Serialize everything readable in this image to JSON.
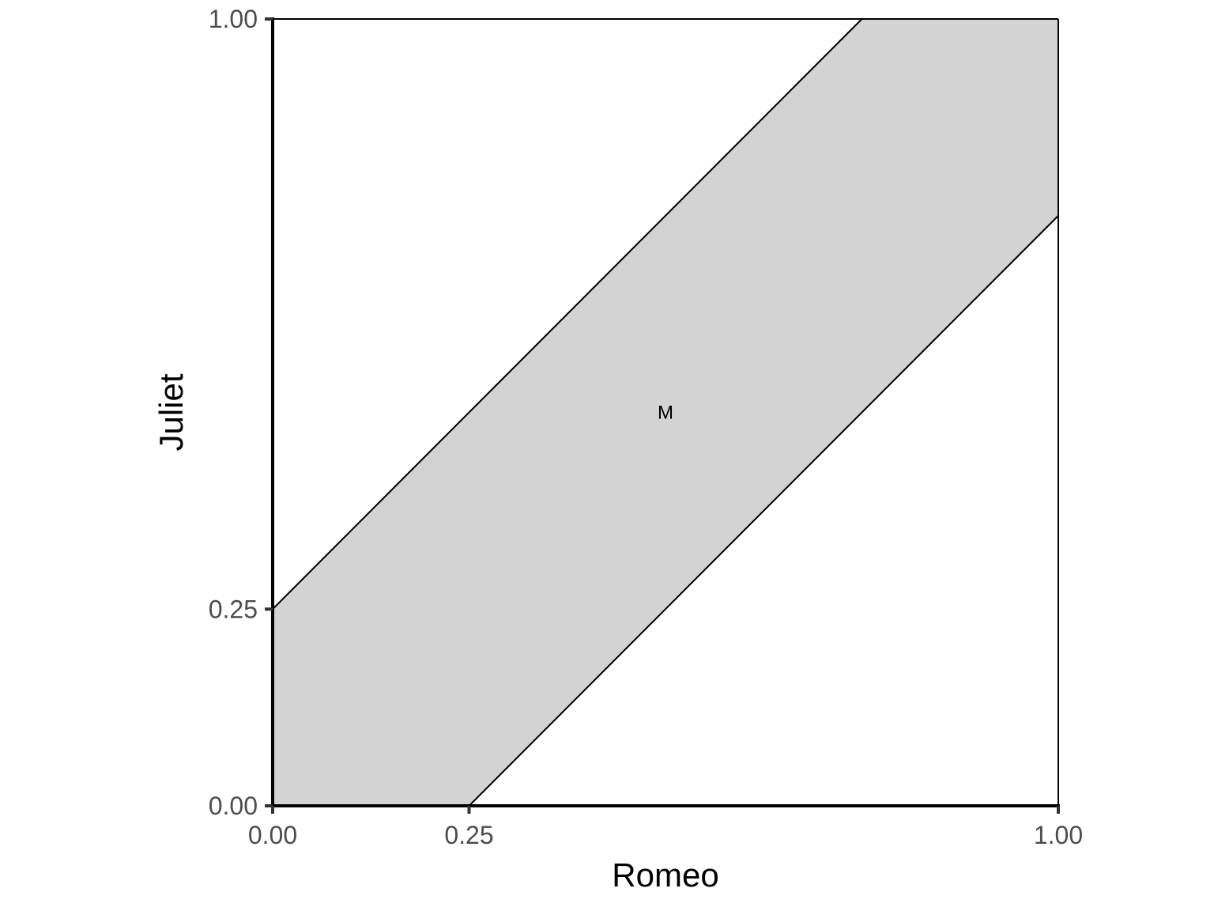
{
  "chart_data": {
    "type": "area",
    "xlabel": "Romeo",
    "ylabel": "Juliet",
    "xlim": [
      0,
      1
    ],
    "ylim": [
      0,
      1
    ],
    "grid": false,
    "x_ticks": [
      {
        "value": 0,
        "label": "0.00"
      },
      {
        "value": 0.25,
        "label": "0.25"
      },
      {
        "value": 1,
        "label": "1.00"
      }
    ],
    "y_ticks": [
      {
        "value": 0,
        "label": "0.00"
      },
      {
        "value": 0.25,
        "label": "0.25"
      },
      {
        "value": 1,
        "label": "1.00"
      }
    ],
    "band": {
      "polygon": [
        [
          0,
          0
        ],
        [
          0.25,
          0
        ],
        [
          1,
          0.75
        ],
        [
          1,
          1
        ],
        [
          0.75,
          1
        ],
        [
          0,
          0.25
        ]
      ],
      "upper_line": [
        [
          0,
          0.25
        ],
        [
          0.75,
          1
        ]
      ],
      "lower_line": [
        [
          0.25,
          0
        ],
        [
          1,
          0.75
        ]
      ],
      "fill_color": "#d3d3d3",
      "line_color": "#000000"
    },
    "annotations": [
      {
        "text": "M",
        "x": 0.5,
        "y": 0.5
      }
    ]
  }
}
